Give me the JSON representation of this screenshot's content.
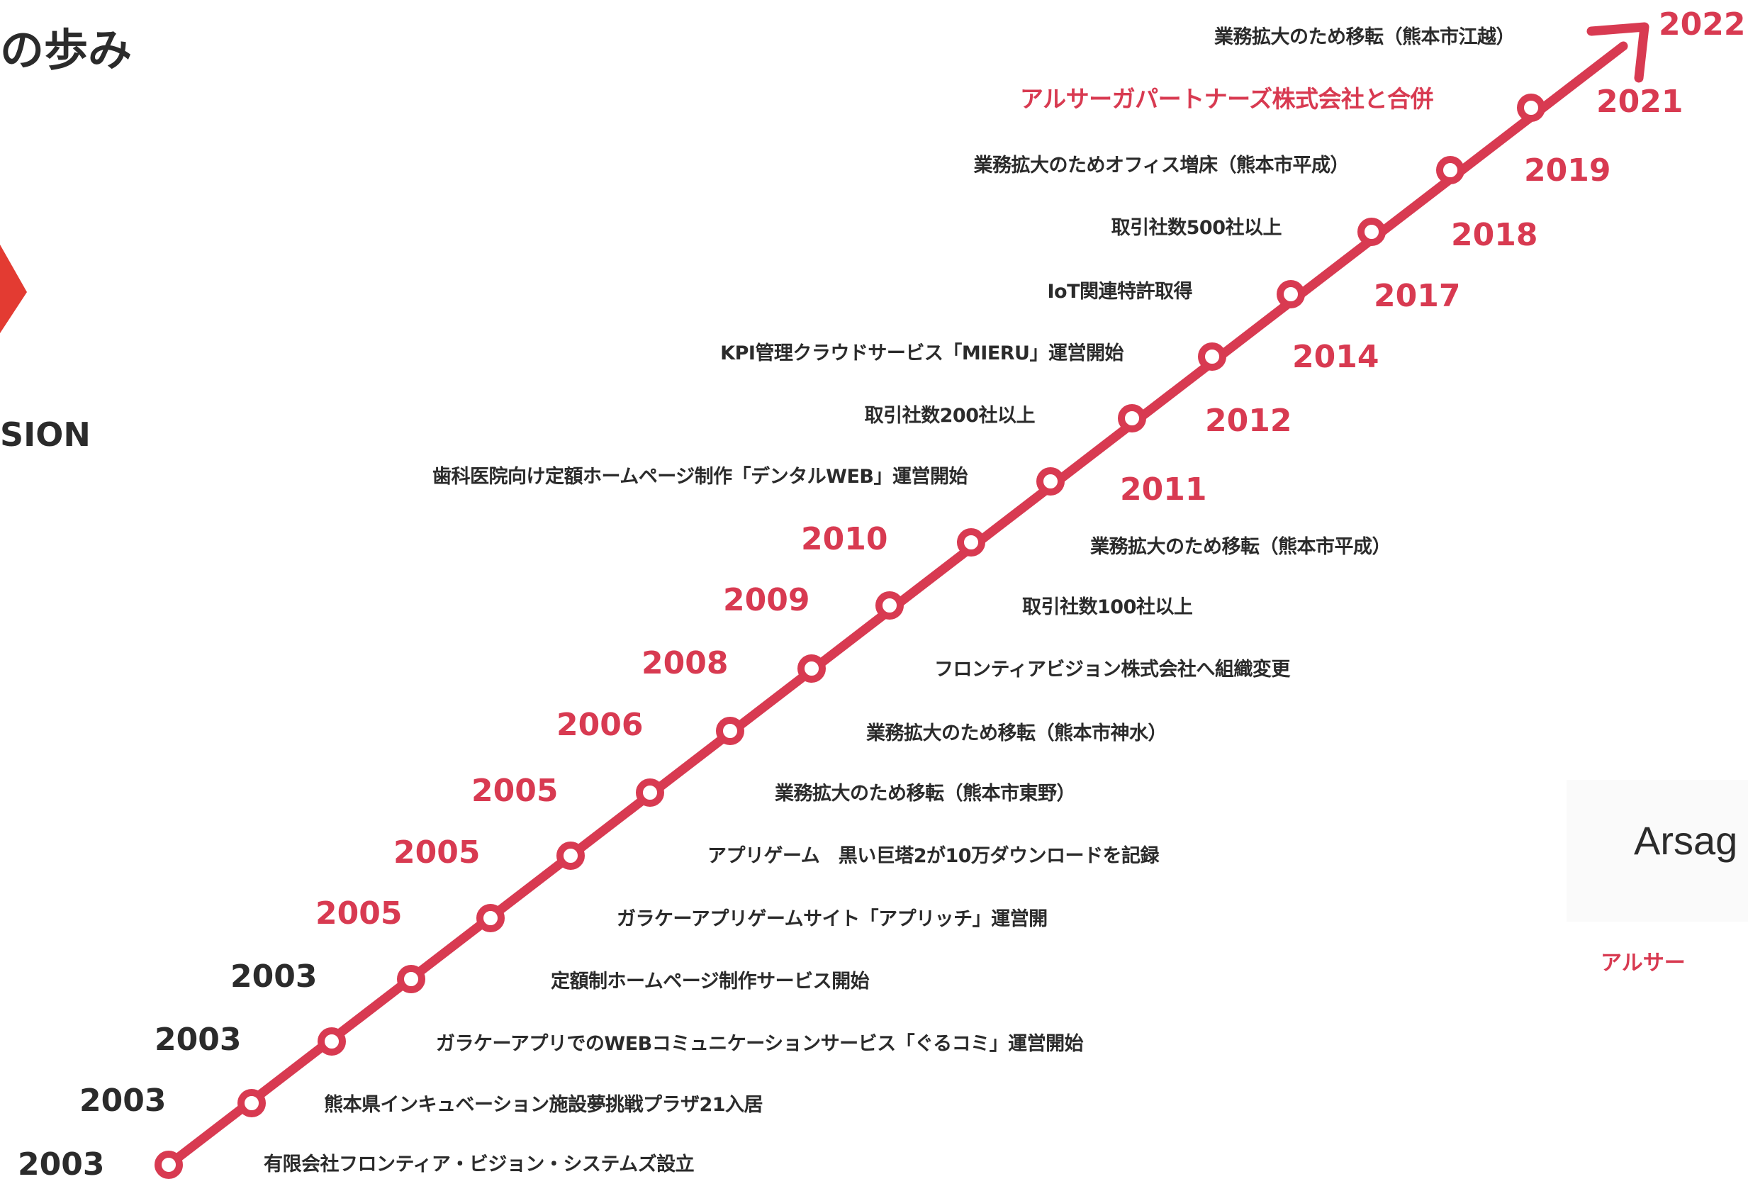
{
  "heading": {
    "title": "の歩み"
  },
  "brand": {
    "vision_text": "SION"
  },
  "side_panel": {
    "name": "Arsag",
    "subtitle": "アルサー"
  },
  "colors": {
    "accent": "#d83a51",
    "text": "#2b2b2b",
    "logo_red": "#e33b32"
  },
  "timeline": [
    {
      "year": "2003",
      "event": "有限会社フロンティア・ビジョン・システムズ設立"
    },
    {
      "year": "2003",
      "event": "熊本県インキュベーション施設夢挑戦プラザ21入居"
    },
    {
      "year": "2003",
      "event": "ガラケーアプリでのWEBコミュニケーションサービス「ぐるコミ」運営開始"
    },
    {
      "year": "2003",
      "event": "定額制ホームページ制作サービス開始"
    },
    {
      "year": "2005",
      "event": "ガラケーアプリゲームサイト「アプリッチ」運営開"
    },
    {
      "year": "2005",
      "event": "アプリゲーム　黒い巨塔2が10万ダウンロードを記録"
    },
    {
      "year": "2005",
      "event": "業務拡大のため移転（熊本市東野）"
    },
    {
      "year": "2006",
      "event": "業務拡大のため移転（熊本市神水）"
    },
    {
      "year": "2008",
      "event": "フロンティアビジョン株式会社へ組織変更"
    },
    {
      "year": "2009",
      "event": "取引社数100社以上"
    },
    {
      "year": "2010",
      "event": "業務拡大のため移転（熊本市平成）"
    },
    {
      "year": "2011",
      "event": "歯科医院向け定額ホームページ制作「デンタルWEB」運営開始"
    },
    {
      "year": "2012",
      "event": "取引社数200社以上"
    },
    {
      "year": "2014",
      "event": "KPI管理クラウドサービス「MIERU」運営開始"
    },
    {
      "year": "2017",
      "event": "IoT関連特許取得"
    },
    {
      "year": "2018",
      "event": "取引社数500社以上"
    },
    {
      "year": "2019",
      "event": "業務拡大のためオフィス増床（熊本市平成）"
    },
    {
      "year": "2021",
      "event": "アルサーガパートナーズ株式会社と合併",
      "highlight": true
    },
    {
      "year": "2022",
      "event": "業務拡大のため移転（熊本市江越）"
    }
  ]
}
